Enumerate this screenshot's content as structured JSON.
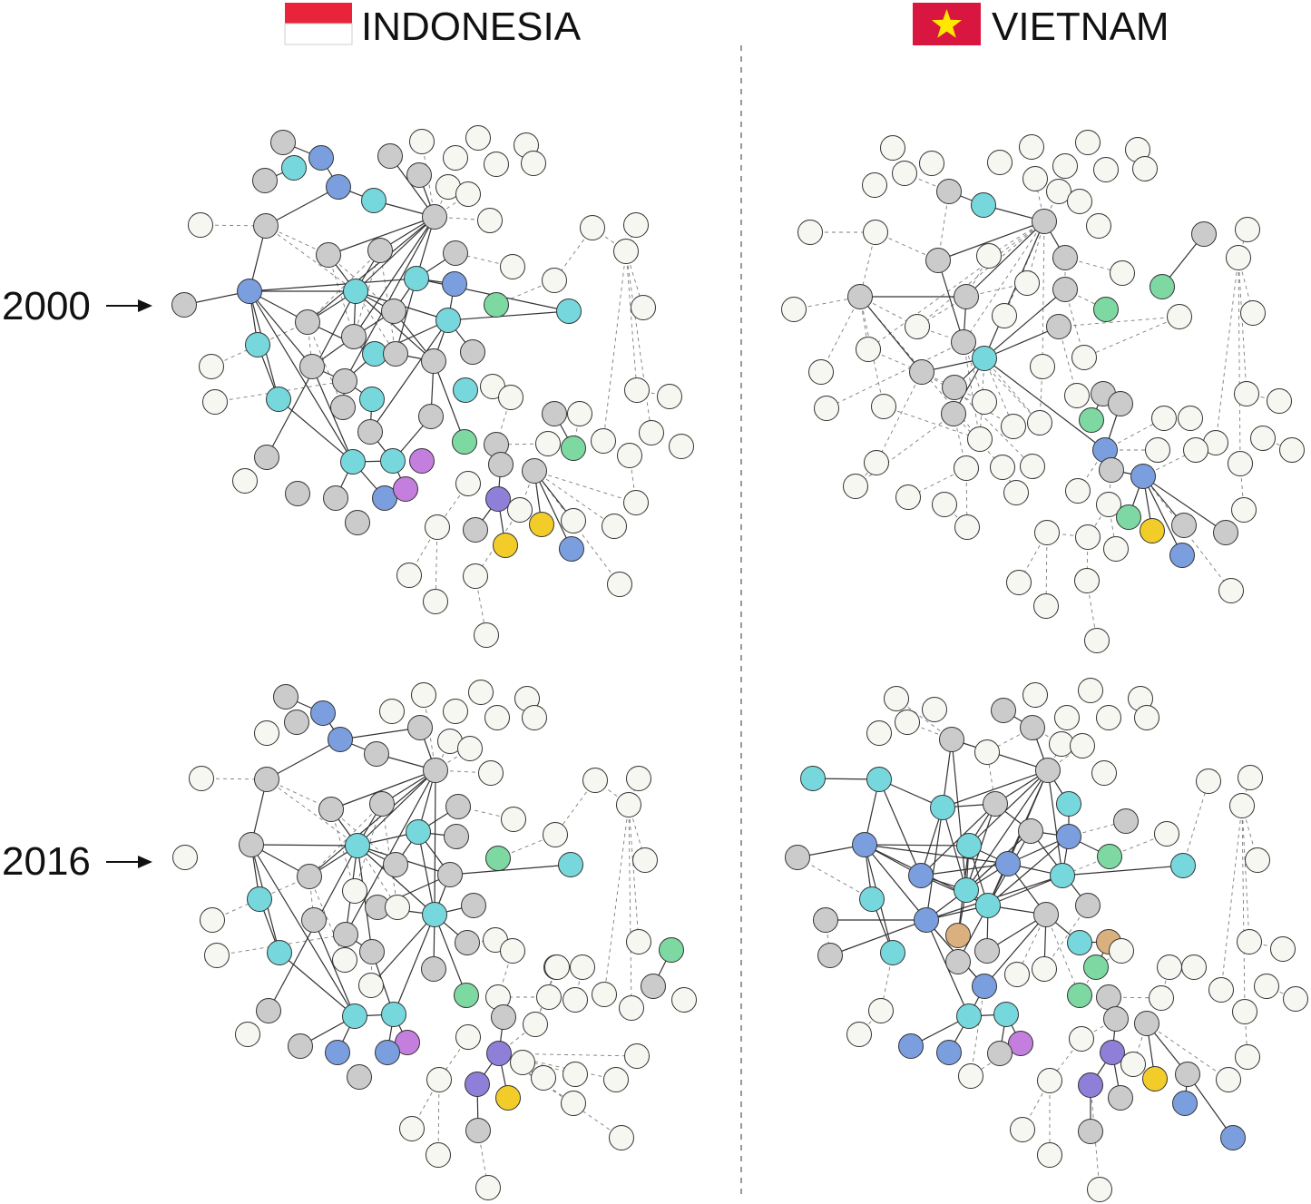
{
  "countries": [
    {
      "name": "INDONESIA",
      "flag": "indonesia-flag"
    },
    {
      "name": "VIETNAM",
      "flag": "vietnam-flag"
    }
  ],
  "years": [
    {
      "label": "2000",
      "icon": "arrow-right-icon"
    },
    {
      "label": "2016",
      "icon": "arrow-right-icon"
    }
  ],
  "colors": {
    "inactive": "#f6f7f1",
    "gray": "#cbcbcb",
    "cyan": "#76d8dc",
    "blue": "#7b9ede",
    "green": "#7dd8a1",
    "purple": "#c47ede",
    "violet": "#8f7fd9",
    "yellow": "#f2cd2a",
    "tan": "#dbb07f",
    "indonesia_red": "#e8233a",
    "vietnam_red": "#d9163f",
    "vietnam_star": "#ffe800"
  },
  "layout_types": [
    "solid-edges",
    "dashed-edges",
    "nodes"
  ]
}
